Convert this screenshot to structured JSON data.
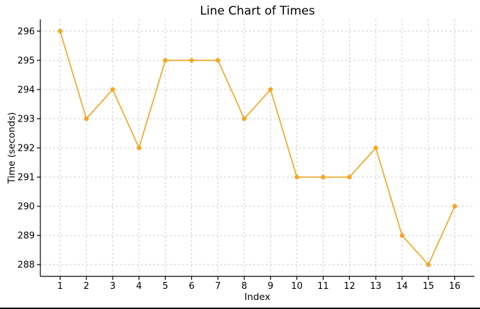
{
  "chart_data": {
    "type": "line",
    "title": "Line Chart of Times",
    "xlabel": "Index",
    "ylabel": "Time (seconds)",
    "x": [
      1,
      2,
      3,
      4,
      5,
      6,
      7,
      8,
      9,
      10,
      11,
      12,
      13,
      14,
      15,
      16
    ],
    "series": [
      {
        "values": [
          296,
          293,
          294,
          292,
          295,
          295,
          295,
          293,
          294,
          291,
          291,
          291,
          292,
          289,
          288,
          290
        ],
        "color": "#f5a623"
      }
    ],
    "xlim": [
      0.25,
      16.75
    ],
    "ylim": [
      287.6,
      296.4
    ],
    "yticks": [
      288,
      289,
      290,
      291,
      292,
      293,
      294,
      295,
      296
    ],
    "grid": true,
    "legend": "none"
  }
}
